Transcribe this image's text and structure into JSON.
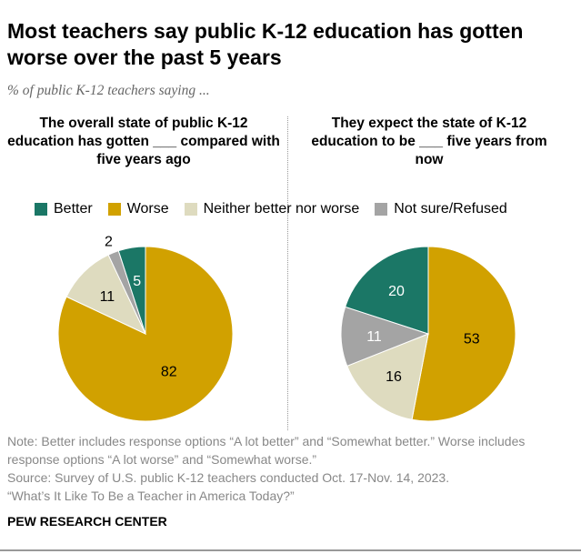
{
  "chart_data": {
    "type": "pie",
    "title": "Most teachers say public K-12 education has gotten worse over the past 5 years",
    "subtitle": "% of public K-12 teachers saying ...",
    "legend": {
      "placement": "top",
      "entries": [
        "Better",
        "Worse",
        "Neither better nor worse",
        "Not sure/Refused"
      ]
    },
    "colors": {
      "Better": "#1b7766",
      "Worse": "#d1a100",
      "Neither better nor worse": "#dedbbf",
      "Not sure/Refused": "#a4a4a4"
    },
    "charts": [
      {
        "heading": "The overall state of public K-12 education has gotten ___ compared with five years ago",
        "slices": [
          {
            "label": "Worse",
            "value": 82
          },
          {
            "label": "Neither better nor worse",
            "value": 11
          },
          {
            "label": "Not sure/Refused",
            "value": 2
          },
          {
            "label": "Better",
            "value": 5
          }
        ]
      },
      {
        "heading": "They expect the state of K-12 education to be ___ five years from now",
        "slices": [
          {
            "label": "Worse",
            "value": 53
          },
          {
            "label": "Neither better nor worse",
            "value": 16
          },
          {
            "label": "Not sure/Refused",
            "value": 11
          },
          {
            "label": "Better",
            "value": 20
          }
        ]
      }
    ]
  },
  "notes": {
    "note": "Note: Better includes response options “A lot better” and “Somewhat better.” Worse includes response options “A lot worse” and “Somewhat worse.”",
    "source": "Source: Survey of U.S. public K-12 teachers conducted Oct. 17-Nov. 14, 2023.",
    "report": "“What’s It Like To Be a Teacher in America Today?”"
  },
  "branding": "PEW RESEARCH CENTER"
}
